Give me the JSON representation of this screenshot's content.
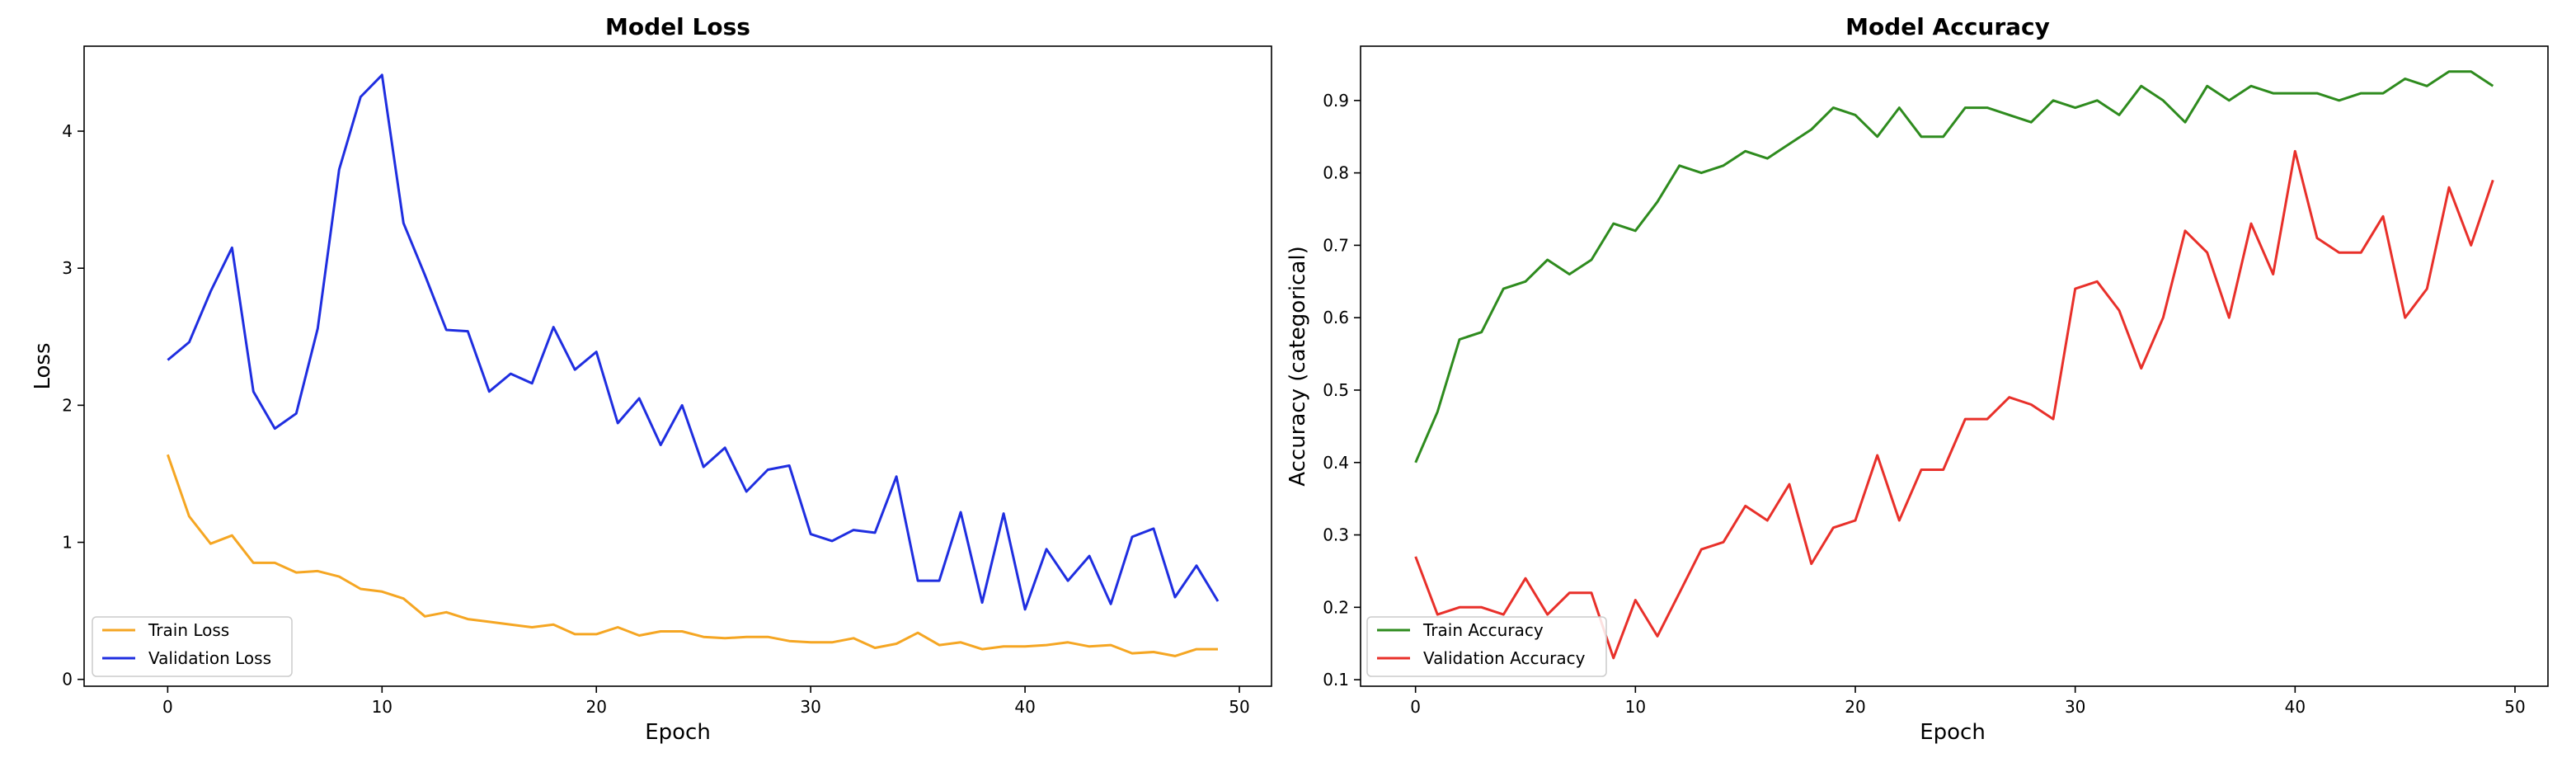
{
  "chart_data": [
    {
      "type": "line",
      "title": "Model Loss",
      "xlabel": "Epoch",
      "ylabel": "Loss",
      "xlim": [
        -3.9,
        51.5
      ],
      "ylim": [
        -0.05,
        4.62
      ],
      "xticks": [
        0,
        10,
        20,
        30,
        40,
        50
      ],
      "yticks": [
        0,
        1,
        2,
        3,
        4
      ],
      "grid": false,
      "legend_position": "lower left",
      "series": [
        {
          "name": "Train Loss",
          "color": "#f5a623",
          "x": [
            0,
            1,
            2,
            3,
            4,
            5,
            6,
            7,
            8,
            9,
            10,
            11,
            12,
            13,
            14,
            15,
            16,
            17,
            18,
            19,
            20,
            21,
            22,
            23,
            24,
            25,
            26,
            27,
            28,
            29,
            30,
            31,
            32,
            33,
            34,
            35,
            36,
            37,
            38,
            39,
            40,
            41,
            42,
            43,
            44,
            45,
            46,
            47,
            48,
            49
          ],
          "values": [
            1.64,
            1.19,
            0.99,
            1.05,
            0.85,
            0.85,
            0.78,
            0.79,
            0.75,
            0.66,
            0.64,
            0.59,
            0.46,
            0.49,
            0.44,
            0.42,
            0.4,
            0.38,
            0.4,
            0.33,
            0.33,
            0.38,
            0.32,
            0.35,
            0.35,
            0.31,
            0.3,
            0.31,
            0.31,
            0.28,
            0.27,
            0.27,
            0.3,
            0.23,
            0.26,
            0.34,
            0.25,
            0.27,
            0.22,
            0.24,
            0.24,
            0.25,
            0.27,
            0.24,
            0.25,
            0.19,
            0.2,
            0.17,
            0.22,
            0.22
          ]
        },
        {
          "name": "Validation Loss",
          "color": "#1f2ee0",
          "x": [
            0,
            1,
            2,
            3,
            4,
            5,
            6,
            7,
            8,
            9,
            10,
            11,
            12,
            13,
            14,
            15,
            16,
            17,
            18,
            19,
            20,
            21,
            22,
            23,
            24,
            25,
            26,
            27,
            28,
            29,
            30,
            31,
            32,
            33,
            34,
            35,
            36,
            37,
            38,
            39,
            40,
            41,
            42,
            43,
            44,
            45,
            46,
            47,
            48,
            49
          ],
          "values": [
            2.33,
            2.46,
            2.83,
            3.15,
            2.1,
            1.83,
            1.94,
            2.56,
            3.72,
            4.25,
            4.41,
            3.33,
            2.95,
            2.55,
            2.54,
            2.1,
            2.23,
            2.16,
            2.57,
            2.26,
            2.39,
            1.87,
            2.05,
            1.71,
            2.0,
            1.55,
            1.69,
            1.37,
            1.53,
            1.56,
            1.06,
            1.01,
            1.09,
            1.07,
            1.48,
            0.72,
            0.72,
            1.22,
            0.56,
            1.21,
            0.51,
            0.95,
            0.72,
            0.9,
            0.55,
            1.04,
            1.1,
            0.6,
            0.83,
            0.57
          ]
        }
      ]
    },
    {
      "type": "line",
      "title": "Model Accuracy",
      "xlabel": "Epoch",
      "ylabel": "Accuracy (categorical)",
      "xlim": [
        -2.5,
        51.5
      ],
      "ylim": [
        0.091,
        0.975
      ],
      "xticks": [
        0,
        10,
        20,
        30,
        40,
        50
      ],
      "yticks": [
        0.1,
        0.2,
        0.3,
        0.4,
        0.5,
        0.6,
        0.7,
        0.8,
        0.9
      ],
      "grid": false,
      "legend_position": "lower left",
      "series": [
        {
          "name": "Train Accuracy",
          "color": "#2e8b1e",
          "x": [
            0,
            1,
            2,
            3,
            4,
            5,
            6,
            7,
            8,
            9,
            10,
            11,
            12,
            13,
            14,
            15,
            16,
            17,
            18,
            19,
            20,
            21,
            22,
            23,
            24,
            25,
            26,
            27,
            28,
            29,
            30,
            31,
            32,
            33,
            34,
            35,
            36,
            37,
            38,
            39,
            40,
            41,
            42,
            43,
            44,
            45,
            46,
            47,
            48,
            49
          ],
          "values": [
            0.4,
            0.47,
            0.57,
            0.58,
            0.64,
            0.65,
            0.68,
            0.66,
            0.68,
            0.73,
            0.72,
            0.76,
            0.81,
            0.8,
            0.81,
            0.83,
            0.82,
            0.84,
            0.86,
            0.89,
            0.88,
            0.85,
            0.89,
            0.85,
            0.85,
            0.89,
            0.89,
            0.88,
            0.87,
            0.9,
            0.89,
            0.9,
            0.88,
            0.92,
            0.9,
            0.87,
            0.92,
            0.9,
            0.92,
            0.91,
            0.91,
            0.91,
            0.9,
            0.91,
            0.91,
            0.93,
            0.92,
            0.94,
            0.94,
            0.92
          ]
        },
        {
          "name": "Validation Accuracy",
          "color": "#e8302a",
          "x": [
            0,
            1,
            2,
            3,
            4,
            5,
            6,
            7,
            8,
            9,
            10,
            11,
            12,
            13,
            14,
            15,
            16,
            17,
            18,
            19,
            20,
            21,
            22,
            23,
            24,
            25,
            26,
            27,
            28,
            29,
            30,
            31,
            32,
            33,
            34,
            35,
            36,
            37,
            38,
            39,
            40,
            41,
            42,
            43,
            44,
            45,
            46,
            47,
            48,
            49
          ],
          "values": [
            0.27,
            0.19,
            0.2,
            0.2,
            0.19,
            0.24,
            0.19,
            0.22,
            0.22,
            0.13,
            0.21,
            0.16,
            0.22,
            0.28,
            0.29,
            0.34,
            0.32,
            0.37,
            0.26,
            0.31,
            0.32,
            0.41,
            0.32,
            0.39,
            0.39,
            0.46,
            0.46,
            0.49,
            0.48,
            0.46,
            0.64,
            0.65,
            0.61,
            0.53,
            0.6,
            0.72,
            0.69,
            0.6,
            0.73,
            0.66,
            0.83,
            0.71,
            0.69,
            0.69,
            0.74,
            0.6,
            0.64,
            0.78,
            0.7,
            0.79
          ]
        }
      ]
    }
  ]
}
